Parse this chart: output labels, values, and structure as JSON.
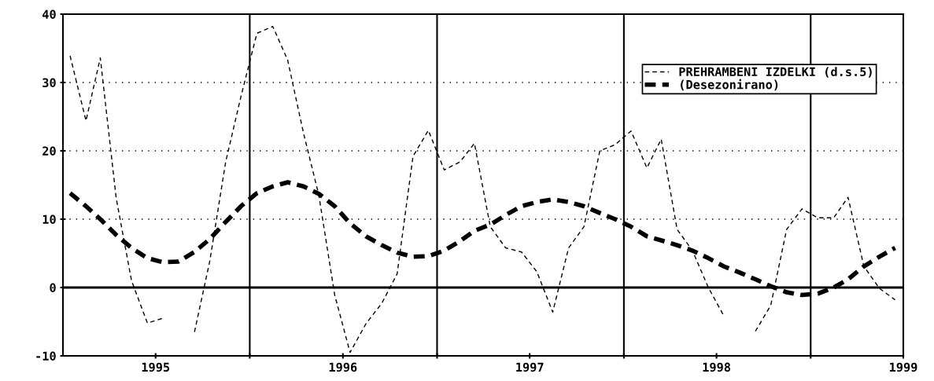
{
  "chart_data": {
    "type": "line",
    "x": [
      "1995-01-15",
      "1995-02-15",
      "1995-03-15",
      "1995-04-15",
      "1995-05-15",
      "1995-06-15",
      "1995-07-15",
      "1995-08-15",
      "1995-09-15",
      "1995-10-15",
      "1995-11-15",
      "1995-12-15",
      "1996-01-15",
      "1996-02-15",
      "1996-03-15",
      "1996-04-15",
      "1996-05-15",
      "1996-06-15",
      "1996-07-15",
      "1996-08-15",
      "1996-09-15",
      "1996-10-15",
      "1996-11-15",
      "1996-12-15",
      "1997-01-15",
      "1997-02-15",
      "1997-03-15",
      "1997-04-15",
      "1997-05-15",
      "1997-06-15",
      "1997-07-15",
      "1997-08-15",
      "1997-09-15",
      "1997-10-15",
      "1997-11-15",
      "1997-12-15",
      "1998-01-15",
      "1998-02-15",
      "1998-03-15",
      "1998-04-15",
      "1998-05-15",
      "1998-06-15",
      "1998-07-15",
      "1998-08-15",
      "1998-09-15",
      "1998-10-15",
      "1998-11-15",
      "1998-12-15",
      "1999-01-15",
      "1999-02-15",
      "1999-03-15",
      "1999-04-15",
      "1999-05-15",
      "1999-06-15"
    ],
    "series": [
      {
        "name": "PREHRAMBENI IZDELKI (d.s.5)",
        "color": "#000000",
        "line_style": "dashed",
        "values": [
          33.9,
          24.4,
          33.6,
          13.1,
          1.0,
          -5.2,
          -4.5,
          null,
          -6.5,
          3.9,
          18.4,
          28,
          37.2,
          38.2,
          33.3,
          22.6,
          13.5,
          -1.1,
          -9.5,
          -5.3,
          -2.3,
          2.0,
          19.2,
          23.0,
          17.2,
          18.4,
          21.1,
          8.9,
          5.8,
          5.2,
          2.3,
          -3.6,
          5.8,
          8.9,
          20.0,
          20.9,
          22.9,
          17.5,
          21.7,
          8.5,
          5.4,
          0,
          -4.1,
          null,
          -6.4,
          -2.6,
          8.5,
          11.5,
          10.2,
          10.2,
          13.2,
          3.1,
          -0.1,
          -1.8
        ]
      },
      {
        "name": "(Desezonirano)",
        "color": "#000000",
        "line_style": "dashed",
        "values": [
          13.8,
          11.9,
          10.0,
          7.7,
          5.8,
          4.3,
          3.7,
          3.8,
          5.2,
          7.1,
          9.6,
          11.9,
          13.8,
          14.8,
          15.4,
          14.8,
          13.7,
          11.9,
          9.4,
          7.5,
          6.2,
          5.1,
          4.5,
          4.6,
          5.4,
          6.8,
          8.3,
          9.2,
          10.6,
          11.9,
          12.5,
          12.9,
          12.5,
          11.9,
          10.9,
          10.0,
          8.9,
          7.5,
          6.9,
          6.2,
          5.4,
          4.3,
          3.1,
          2.2,
          1.2,
          0.2,
          -0.7,
          -1.1,
          -0.9,
          0,
          1.2,
          3.1,
          4.5,
          5.8
        ]
      }
    ],
    "xlim": [
      "1995-01-01",
      "1999-07-01"
    ],
    "xticks": [
      {
        "value": "1995-07-01",
        "label": "1995"
      },
      {
        "value": "1996-01-01",
        "label": null
      },
      {
        "value": "1996-07-01",
        "label": "1996"
      },
      {
        "value": "1997-01-01",
        "label": null
      },
      {
        "value": "1997-07-01",
        "label": "1997"
      },
      {
        "value": "1998-01-01",
        "label": null
      },
      {
        "value": "1998-07-01",
        "label": "1998"
      },
      {
        "value": "1999-01-01",
        "label": null
      },
      {
        "value": "1999-07-01",
        "label": "1999"
      }
    ],
    "ylim": [
      -10,
      40
    ],
    "yticks": [
      -10,
      0,
      10,
      20,
      30,
      40
    ],
    "grid": "y",
    "legend": "top right",
    "marker": "none",
    "ref_lines": [
      {
        "axis": "y",
        "value": 0
      },
      {
        "axis": "x",
        "value": "1996-01-01"
      },
      {
        "axis": "x",
        "value": "1997-01-01"
      },
      {
        "axis": "x",
        "value": "1998-01-01"
      },
      {
        "axis": "x",
        "value": "1999-01-01"
      }
    ]
  }
}
